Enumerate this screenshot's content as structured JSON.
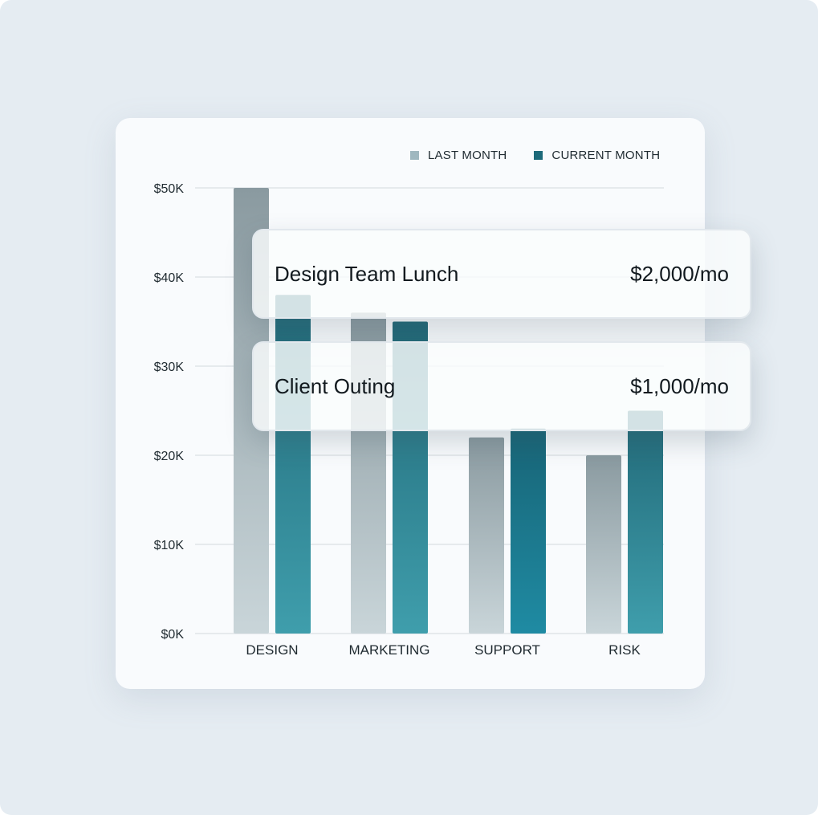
{
  "colors": {
    "last_month": "#9fb7bf",
    "current_month": "#1d6a7a",
    "last_month_bar_top": "#8a9aa0",
    "last_month_bar_bottom": "#c9d5d9",
    "current_month_bar_top": "#216877",
    "current_month_bar_bottom": "#3f9eac",
    "support_current_top": "#186476",
    "support_current_bottom": "#1f8ba3",
    "grid": "#dfe4e8",
    "axis_text": "#1f2a30"
  },
  "legend": {
    "items": [
      {
        "label": "LAST MONTH"
      },
      {
        "label": "CURRENT MONTH"
      }
    ]
  },
  "chart_data": {
    "type": "bar",
    "categories": [
      "DESIGN",
      "MARKETING",
      "SUPPORT",
      "RISK"
    ],
    "series": [
      {
        "name": "LAST MONTH",
        "values": [
          50,
          36,
          22,
          20
        ]
      },
      {
        "name": "CURRENT MONTH",
        "values": [
          38,
          35,
          23,
          25
        ]
      }
    ],
    "y_ticks": [
      "$0K",
      "$10K",
      "$20K",
      "$30K",
      "$40K",
      "$50K"
    ],
    "y_tick_values": [
      0,
      10,
      20,
      30,
      40,
      50
    ],
    "ylim": [
      0,
      50
    ],
    "grid": true,
    "legend_position": "top-right",
    "title": "",
    "xlabel": "",
    "ylabel": ""
  },
  "overlays": [
    {
      "name": "Design Team Lunch",
      "amount": "$2,000/mo"
    },
    {
      "name": "Client Outing",
      "amount": "$1,000/mo"
    }
  ]
}
